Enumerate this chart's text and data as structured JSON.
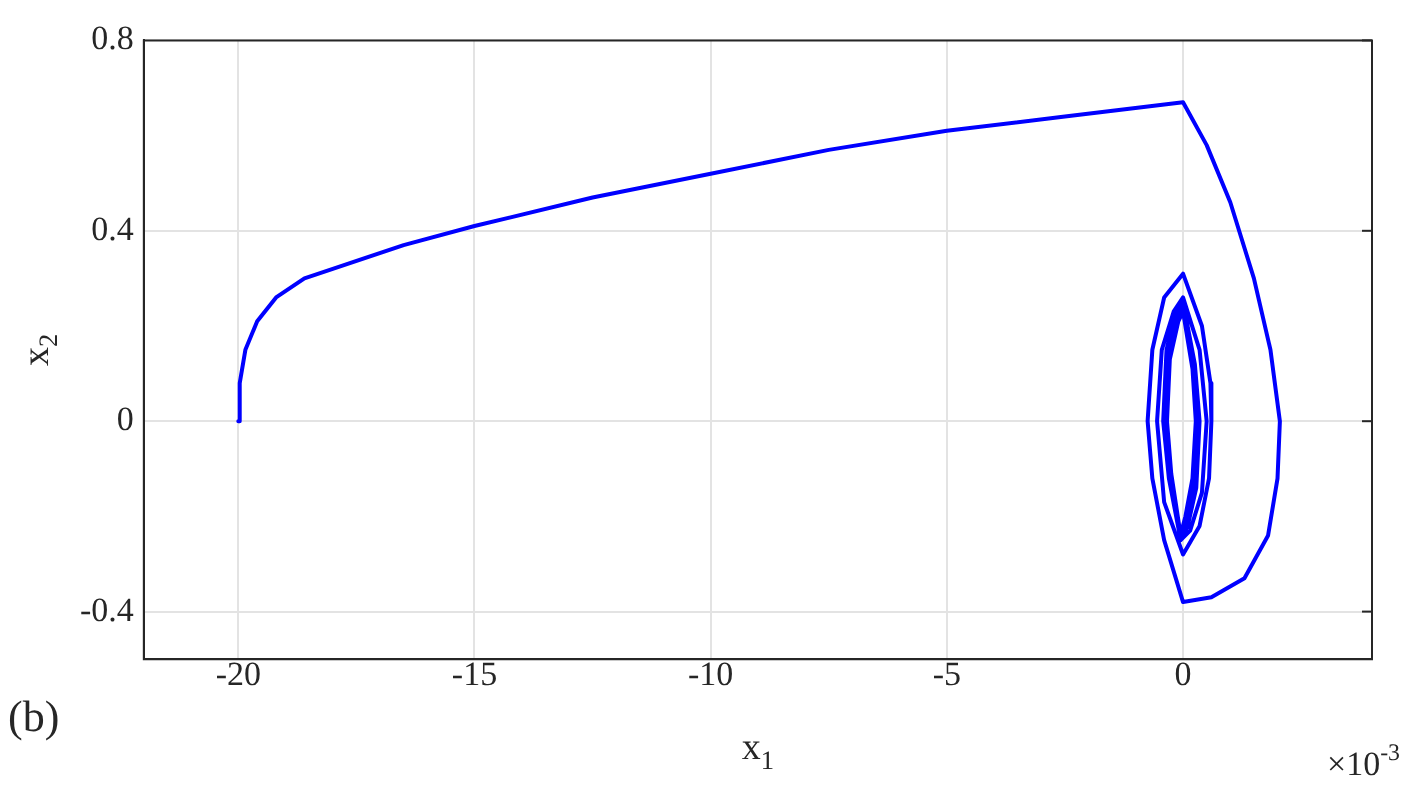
{
  "chart_data": {
    "type": "line",
    "xlabel": "x$_{1}$",
    "ylabel": "x$_{2}$",
    "annotations": [
      "(b)",
      "×10$^{-3}$"
    ],
    "xlim": [
      -22,
      4
    ],
    "xticks": [
      -20,
      -15,
      -10,
      -5,
      0
    ],
    "ylim": [
      -0.5,
      0.8
    ],
    "yticks": [
      -0.4,
      0,
      0.4,
      0.8
    ],
    "grid": true,
    "legend": false,
    "marker": "none",
    "line_style": "solid",
    "series": [
      {
        "color": "#0000ff",
        "x": [
          -20,
          -19.97,
          -19.85,
          -19.6,
          -19.2,
          -18.6,
          -18,
          -16.5,
          -15,
          -12.5,
          -10,
          -7.5,
          -5,
          -2.5,
          0,
          0.5,
          1,
          1.5,
          1.85,
          2.05,
          2.0,
          1.8,
          1.3,
          0.6,
          0,
          -0.4,
          -0.65,
          -0.75,
          -0.65,
          -0.4,
          0,
          0.4,
          0.58,
          0.6,
          0.55,
          0.35,
          0,
          -0.4,
          -0.55,
          -0.45,
          -0.2,
          0,
          0.35,
          0.5,
          0.4,
          0.15,
          -0.05,
          -0.3,
          -0.42,
          -0.35,
          -0.15,
          0,
          0.25,
          0.35,
          0.28,
          0.1,
          -0.05,
          -0.28,
          -0.38,
          -0.32,
          -0.12,
          0,
          0.22,
          0.3,
          0.24,
          0.08,
          -0.05,
          -0.25,
          -0.34,
          -0.28,
          -0.1,
          0,
          0.2,
          0.27,
          0.2,
          0.05,
          -0.03
        ],
        "values": [
          0,
          0.08,
          0.15,
          0.21,
          0.26,
          0.3,
          0.32,
          0.37,
          0.41,
          0.47,
          0.52,
          0.57,
          0.61,
          0.64,
          0.67,
          0.58,
          0.46,
          0.3,
          0.15,
          0,
          -0.12,
          -0.24,
          -0.33,
          -0.37,
          -0.38,
          -0.25,
          -0.12,
          0,
          0.15,
          0.26,
          0.31,
          0.2,
          0.08,
          0,
          -0.12,
          -0.22,
          -0.28,
          -0.17,
          0,
          0.15,
          0.23,
          0.26,
          0.15,
          0,
          -0.15,
          -0.23,
          -0.25,
          -0.12,
          0,
          0.15,
          0.23,
          0.25,
          0.12,
          0,
          -0.14,
          -0.22,
          -0.25,
          -0.12,
          0,
          0.14,
          0.22,
          0.24,
          0.12,
          0,
          -0.13,
          -0.21,
          -0.24,
          -0.11,
          0,
          0.13,
          0.21,
          0.23,
          0.11,
          0,
          -0.12,
          -0.2,
          -0.23
        ]
      }
    ]
  }
}
